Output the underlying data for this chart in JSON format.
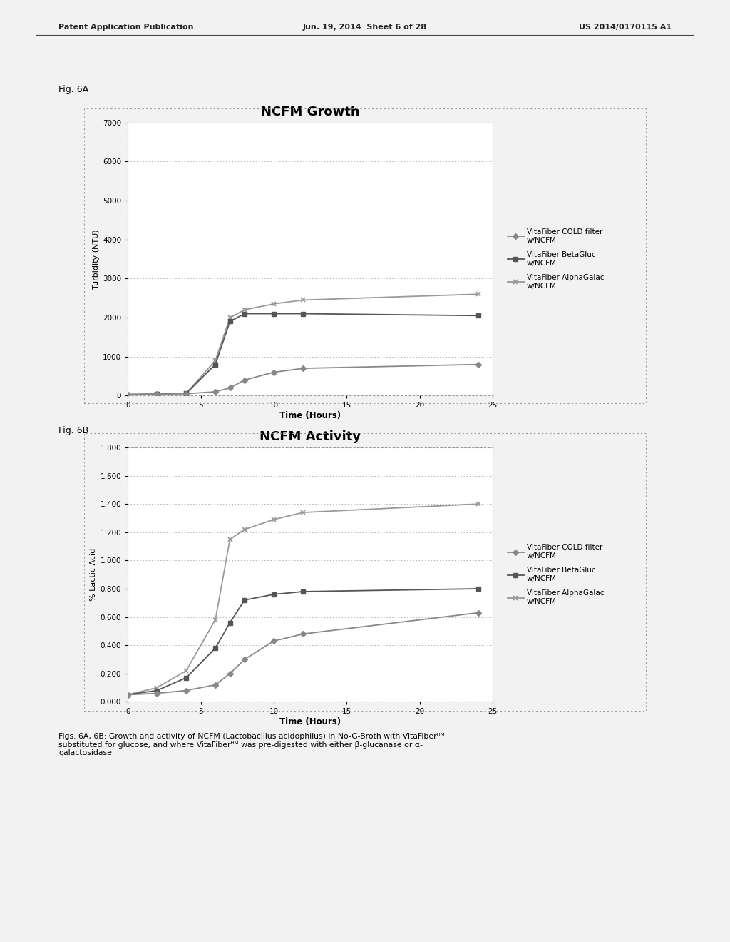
{
  "fig6a_title": "NCFM Growth",
  "fig6b_title": "NCFM Activity",
  "fig6a_xlabel": "Time (Hours)",
  "fig6a_ylabel": "Turbidity (NTU)",
  "fig6b_xlabel": "Time (Hours)",
  "fig6b_ylabel": "% Lactic Acid",
  "time_growth": [
    0,
    2,
    4,
    6,
    7,
    8,
    10,
    12,
    24
  ],
  "growth_cold": [
    30,
    40,
    50,
    100,
    200,
    400,
    600,
    700,
    800
  ],
  "growth_beta": [
    30,
    40,
    60,
    800,
    1900,
    2100,
    2100,
    2100,
    2050
  ],
  "growth_alpha": [
    30,
    40,
    60,
    900,
    2000,
    2200,
    2350,
    2450,
    2600
  ],
  "time_activity": [
    0,
    2,
    4,
    6,
    7,
    8,
    10,
    12,
    24
  ],
  "activity_cold": [
    0.05,
    0.06,
    0.08,
    0.12,
    0.2,
    0.3,
    0.43,
    0.48,
    0.63
  ],
  "activity_beta": [
    0.05,
    0.08,
    0.17,
    0.38,
    0.56,
    0.72,
    0.76,
    0.78,
    0.8
  ],
  "activity_alpha": [
    0.05,
    0.1,
    0.22,
    0.58,
    1.15,
    1.22,
    1.29,
    1.34,
    1.4
  ],
  "fig6a_ylim": [
    0,
    7000
  ],
  "fig6a_yticks": [
    0,
    1000,
    2000,
    3000,
    4000,
    5000,
    6000,
    7000
  ],
  "fig6a_xlim": [
    0,
    25
  ],
  "fig6a_xticks": [
    0,
    5,
    10,
    15,
    20,
    25
  ],
  "fig6b_ylim": [
    0.0,
    1.8
  ],
  "fig6b_yticks": [
    0.0,
    0.2,
    0.4,
    0.6,
    0.8,
    1.0,
    1.2,
    1.4,
    1.6,
    1.8
  ],
  "fig6b_xlim": [
    0,
    25
  ],
  "fig6b_xticks": [
    0,
    5,
    10,
    15,
    20,
    25
  ],
  "legend_labels": [
    "VitaFiber COLD filter\nw/NCFM",
    "VitaFiber BetaGluc\nw/NCFM",
    "VitaFiber AlphaGalac\nw/NCFM"
  ],
  "header_left": "Patent Application Publication",
  "header_mid": "Jun. 19, 2014  Sheet 6 of 28",
  "header_right": "US 2014/0170115 A1",
  "fig6a_label": "Fig. 6A",
  "fig6b_label": "Fig. 6B",
  "page_bg": "#f2f2f2",
  "chart_bg": "#ffffff",
  "line_color_cold": "#888888",
  "line_color_beta": "#555555",
  "line_color_alpha": "#aaaaaa"
}
